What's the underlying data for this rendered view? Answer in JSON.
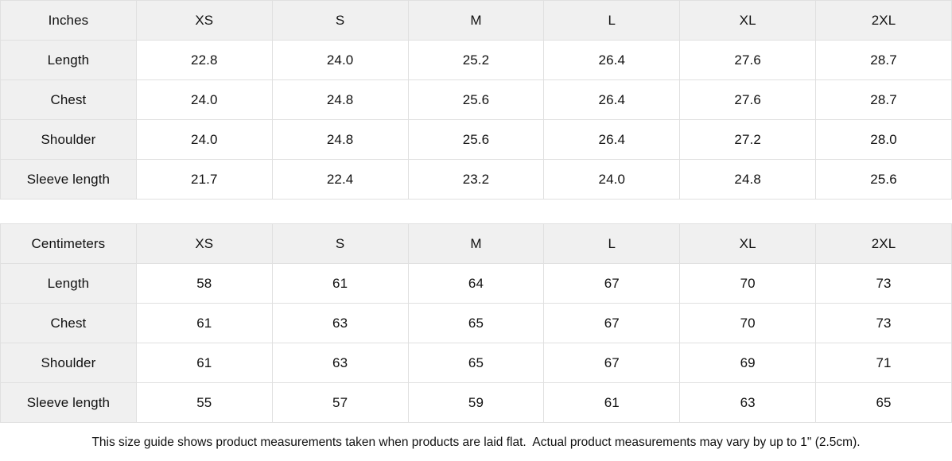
{
  "tables": [
    {
      "name": "inches",
      "header": [
        "Inches",
        "XS",
        "S",
        "M",
        "L",
        "XL",
        "2XL"
      ],
      "rows": [
        {
          "label": "Length",
          "values": [
            "22.8",
            "24.0",
            "25.2",
            "26.4",
            "27.6",
            "28.7"
          ]
        },
        {
          "label": "Chest",
          "values": [
            "24.0",
            "24.8",
            "25.6",
            "26.4",
            "27.6",
            "28.7"
          ]
        },
        {
          "label": "Shoulder",
          "values": [
            "24.0",
            "24.8",
            "25.6",
            "26.4",
            "27.2",
            "28.0"
          ]
        },
        {
          "label": "Sleeve length",
          "values": [
            "21.7",
            "22.4",
            "23.2",
            "24.0",
            "24.8",
            "25.6"
          ]
        }
      ]
    },
    {
      "name": "centimeters",
      "header": [
        "Centimeters",
        "XS",
        "S",
        "M",
        "L",
        "XL",
        "2XL"
      ],
      "rows": [
        {
          "label": "Length",
          "values": [
            "58",
            "61",
            "64",
            "67",
            "70",
            "73"
          ]
        },
        {
          "label": "Chest",
          "values": [
            "61",
            "63",
            "65",
            "67",
            "70",
            "73"
          ]
        },
        {
          "label": "Shoulder",
          "values": [
            "61",
            "63",
            "65",
            "67",
            "69",
            "71"
          ]
        },
        {
          "label": "Sleeve length",
          "values": [
            "55",
            "57",
            "59",
            "61",
            "63",
            "65"
          ]
        }
      ]
    }
  ],
  "footer": {
    "note": "This size guide shows product measurements taken when products are laid flat.  Actual product measurements may vary by up to 1\" (2.5cm)."
  },
  "colors": {
    "header_bg": "#f0f0f0",
    "label_bg": "#f0f0f0",
    "border": "#e0e0e0",
    "text": "#111111",
    "cell_bg": "#ffffff"
  }
}
